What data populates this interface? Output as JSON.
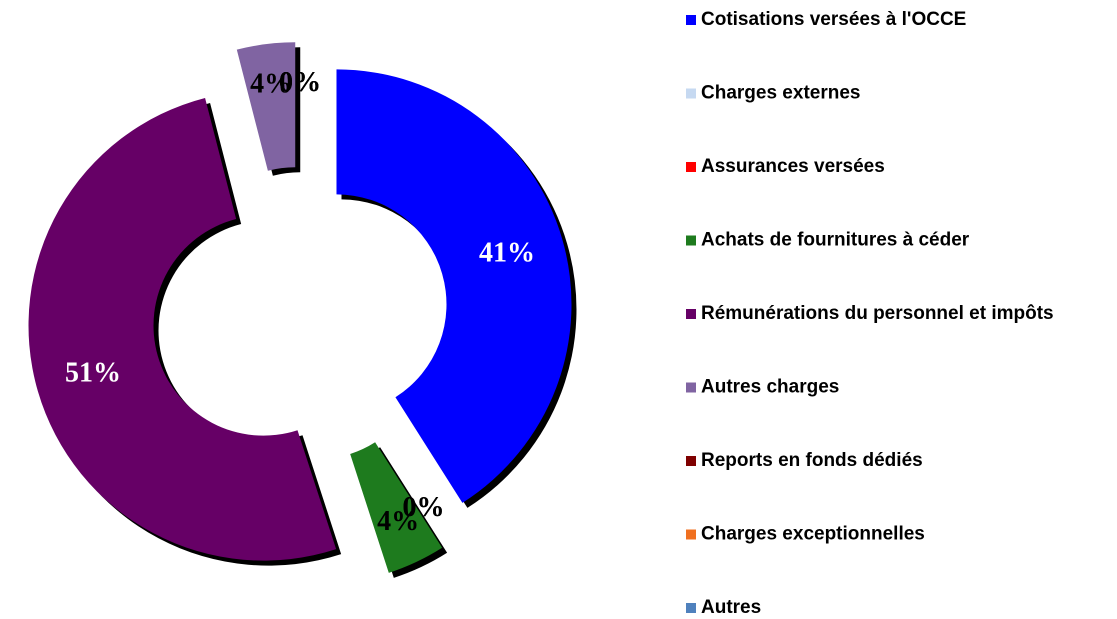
{
  "chart_data": {
    "type": "donut",
    "categories": [
      "Cotisations versées à l'OCCE",
      "Charges externes",
      "Assurances versées",
      "Achats de fournitures à céder",
      "Rémunérations du personnel et impôts",
      "Autres charges",
      "Reports en fonds dédiés",
      "Charges exceptionnelles",
      "Autres"
    ],
    "values": [
      41,
      0,
      0,
      4,
      51,
      4,
      0,
      0,
      0
    ],
    "value_labels": [
      "41%",
      "0%",
      "0%",
      "4%",
      "51%",
      "4%",
      "0%",
      "0%",
      "0%"
    ],
    "colors": [
      "#0000ff",
      "#c6d9f1",
      "#ff0000",
      "#1e7b1e",
      "#660066",
      "#8064a2",
      "#7f0000",
      "#f07020",
      "#4f81bd"
    ],
    "legend": "right"
  }
}
